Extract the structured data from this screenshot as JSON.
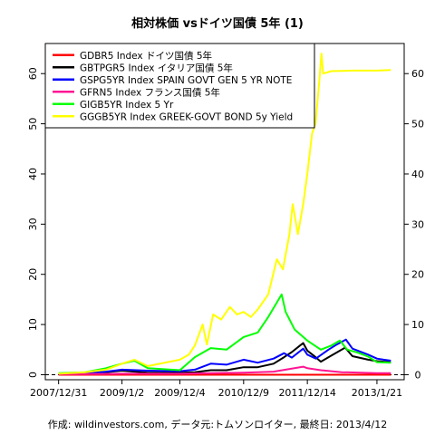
{
  "chart_data": {
    "type": "line",
    "title": "相対株価 vsドイツ国債 5年 (1)",
    "footer": "作成: wildinvestors.com, データ元:トムソンロイター, 最終日: 2013/4/12",
    "x_ticks": [
      "2007/12/31",
      "2009/1/2",
      "2009/12/4",
      "2010/12/9",
      "2011/12/14",
      "2013/1/21"
    ],
    "x_range": [
      "2007-12-31",
      "2013-04-12"
    ],
    "ylim": [
      -1,
      66
    ],
    "y_ticks": [
      0,
      10,
      20,
      30,
      40,
      50,
      60
    ],
    "axis_right": true,
    "legend_position": "top-left",
    "grid": false,
    "baseline": {
      "y": 0,
      "style": "dashed"
    },
    "series": [
      {
        "name": "GDBR5 Index ドイツ国債 5年",
        "color": "#ff0000",
        "points": [
          [
            "2007-12-31",
            0
          ],
          [
            "2013-04-12",
            0
          ]
        ]
      },
      {
        "name": "GBTPGR5 Index イタリア国債 5年",
        "color": "#000000",
        "points": [
          [
            "2007-12-31",
            0.2
          ],
          [
            "2008-06-01",
            0.3
          ],
          [
            "2008-10-01",
            0.5
          ],
          [
            "2009-01-02",
            0.8
          ],
          [
            "2009-06-01",
            0.4
          ],
          [
            "2009-12-04",
            0.4
          ],
          [
            "2010-03-01",
            0.5
          ],
          [
            "2010-06-01",
            0.9
          ],
          [
            "2010-09-01",
            0.9
          ],
          [
            "2010-12-09",
            1.5
          ],
          [
            "2011-03-01",
            1.5
          ],
          [
            "2011-06-01",
            2.2
          ],
          [
            "2011-08-01",
            3.5
          ],
          [
            "2011-09-15",
            4.5
          ],
          [
            "2011-11-01",
            5.8
          ],
          [
            "2011-11-20",
            6.3
          ],
          [
            "2011-12-14",
            4.8
          ],
          [
            "2012-01-20",
            3.8
          ],
          [
            "2012-03-01",
            2.6
          ],
          [
            "2012-05-01",
            3.8
          ],
          [
            "2012-07-20",
            5.4
          ],
          [
            "2012-09-01",
            3.7
          ],
          [
            "2012-12-01",
            3.0
          ],
          [
            "2013-01-21",
            2.7
          ],
          [
            "2013-03-01",
            2.6
          ],
          [
            "2013-04-12",
            2.5
          ]
        ]
      },
      {
        "name": "GSPG5YR Index SPAIN GOVT GEN  5 YR NOTE",
        "color": "#0000ff",
        "points": [
          [
            "2007-12-31",
            0.2
          ],
          [
            "2008-06-01",
            0.3
          ],
          [
            "2008-10-01",
            0.6
          ],
          [
            "2009-01-02",
            1.0
          ],
          [
            "2009-06-01",
            0.8
          ],
          [
            "2009-12-04",
            0.7
          ],
          [
            "2010-03-01",
            1.0
          ],
          [
            "2010-06-01",
            2.2
          ],
          [
            "2010-09-01",
            2.0
          ],
          [
            "2010-12-09",
            3.0
          ],
          [
            "2011-03-01",
            2.4
          ],
          [
            "2011-06-01",
            3.2
          ],
          [
            "2011-08-01",
            4.3
          ],
          [
            "2011-09-15",
            3.4
          ],
          [
            "2011-11-20",
            5.2
          ],
          [
            "2011-12-14",
            4.0
          ],
          [
            "2012-02-01",
            3.2
          ],
          [
            "2012-04-15",
            5.0
          ],
          [
            "2012-06-01",
            6.0
          ],
          [
            "2012-07-25",
            7.0
          ],
          [
            "2012-09-01",
            5.2
          ],
          [
            "2012-12-01",
            4.0
          ],
          [
            "2013-01-21",
            3.2
          ],
          [
            "2013-03-01",
            3.0
          ],
          [
            "2013-04-12",
            2.8
          ]
        ]
      },
      {
        "name": "GFRN5 Index フランス国債 5年",
        "color": "#ff1493",
        "points": [
          [
            "2007-12-31",
            0.1
          ],
          [
            "2009-01-02",
            0.2
          ],
          [
            "2009-12-04",
            0.2
          ],
          [
            "2010-12-09",
            0.4
          ],
          [
            "2011-06-01",
            0.6
          ],
          [
            "2011-11-20",
            1.6
          ],
          [
            "2011-12-14",
            1.3
          ],
          [
            "2012-03-01",
            0.9
          ],
          [
            "2012-07-01",
            0.5
          ],
          [
            "2013-01-21",
            0.3
          ],
          [
            "2013-04-12",
            0.3
          ]
        ]
      },
      {
        "name": "GIGB5YR Index 5 Yr",
        "color": "#00ff00",
        "points": [
          [
            "2007-12-31",
            0.3
          ],
          [
            "2008-06-01",
            0.5
          ],
          [
            "2008-10-01",
            1.3
          ],
          [
            "2009-01-02",
            2.2
          ],
          [
            "2009-03-15",
            2.8
          ],
          [
            "2009-06-01",
            1.3
          ],
          [
            "2009-12-04",
            0.9
          ],
          [
            "2010-03-01",
            3.5
          ],
          [
            "2010-06-01",
            5.3
          ],
          [
            "2010-09-01",
            5.0
          ],
          [
            "2010-12-09",
            7.5
          ],
          [
            "2011-03-01",
            8.4
          ],
          [
            "2011-05-01",
            11.5
          ],
          [
            "2011-07-18",
            16.0
          ],
          [
            "2011-08-10",
            12.5
          ],
          [
            "2011-10-01",
            9.0
          ],
          [
            "2011-12-14",
            6.8
          ],
          [
            "2012-03-01",
            5.0
          ],
          [
            "2012-05-01",
            5.8
          ],
          [
            "2012-06-20",
            6.8
          ],
          [
            "2012-08-01",
            5.0
          ],
          [
            "2012-10-01",
            4.4
          ],
          [
            "2012-12-01",
            3.6
          ],
          [
            "2013-01-21",
            2.5
          ],
          [
            "2013-04-12",
            2.4
          ]
        ]
      },
      {
        "name": "GGGB5YR Index GREEK-GOVT BOND 5y Yield",
        "color": "#ffff00",
        "points": [
          [
            "2007-12-31",
            0.2
          ],
          [
            "2008-06-01",
            0.5
          ],
          [
            "2008-10-01",
            1.0
          ],
          [
            "2009-01-02",
            2.2
          ],
          [
            "2009-03-15",
            3.0
          ],
          [
            "2009-06-01",
            1.7
          ],
          [
            "2009-12-04",
            3.0
          ],
          [
            "2010-01-25",
            4.0
          ],
          [
            "2010-03-01",
            5.8
          ],
          [
            "2010-04-15",
            10.0
          ],
          [
            "2010-05-10",
            6.0
          ],
          [
            "2010-06-15",
            12.0
          ],
          [
            "2010-08-01",
            11.0
          ],
          [
            "2010-09-20",
            13.5
          ],
          [
            "2010-11-01",
            12.0
          ],
          [
            "2010-12-09",
            12.5
          ],
          [
            "2011-01-20",
            11.5
          ],
          [
            "2011-03-01",
            13.0
          ],
          [
            "2011-05-01",
            16.0
          ],
          [
            "2011-06-20",
            23.0
          ],
          [
            "2011-07-25",
            21.0
          ],
          [
            "2011-09-01",
            28.0
          ],
          [
            "2011-09-20",
            34.0
          ],
          [
            "2011-10-20",
            28.0
          ],
          [
            "2011-11-20",
            34.0
          ],
          [
            "2011-12-14",
            40.0
          ],
          [
            "2012-01-10",
            48.0
          ],
          [
            "2012-01-30",
            50.0
          ],
          [
            "2012-02-20",
            58.0
          ],
          [
            "2012-03-05",
            64.0
          ],
          [
            "2012-03-15",
            60.0
          ],
          [
            "2012-05-01",
            60.5
          ],
          [
            "2012-09-01",
            60.6
          ],
          [
            "2013-01-21",
            60.6
          ],
          [
            "2013-04-12",
            60.7
          ]
        ]
      }
    ]
  }
}
